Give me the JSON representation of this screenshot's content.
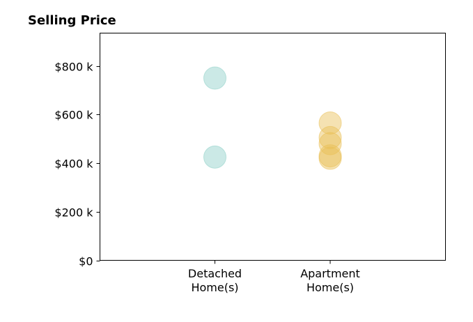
{
  "chart_data": {
    "type": "scatter",
    "title": "Selling Price",
    "xlabel": "",
    "ylabel": "",
    "categories": [
      [
        "Detached",
        "Home(s)"
      ],
      [
        "Apartment",
        "Home(s)"
      ]
    ],
    "ylim": [
      0,
      935000
    ],
    "yticks": [
      0,
      200000,
      400000,
      600000,
      800000
    ],
    "ytick_labels": [
      "$0",
      "$200 k",
      "$400 k",
      "$600 k",
      "$800 k"
    ],
    "grid": false,
    "series": [
      {
        "category_index": 0,
        "color": "#8ccfc7",
        "values": [
          750000,
          425000
        ]
      },
      {
        "category_index": 1,
        "color": "#e9bf55",
        "values": [
          565000,
          505000,
          480000,
          430000,
          420000
        ]
      }
    ]
  }
}
